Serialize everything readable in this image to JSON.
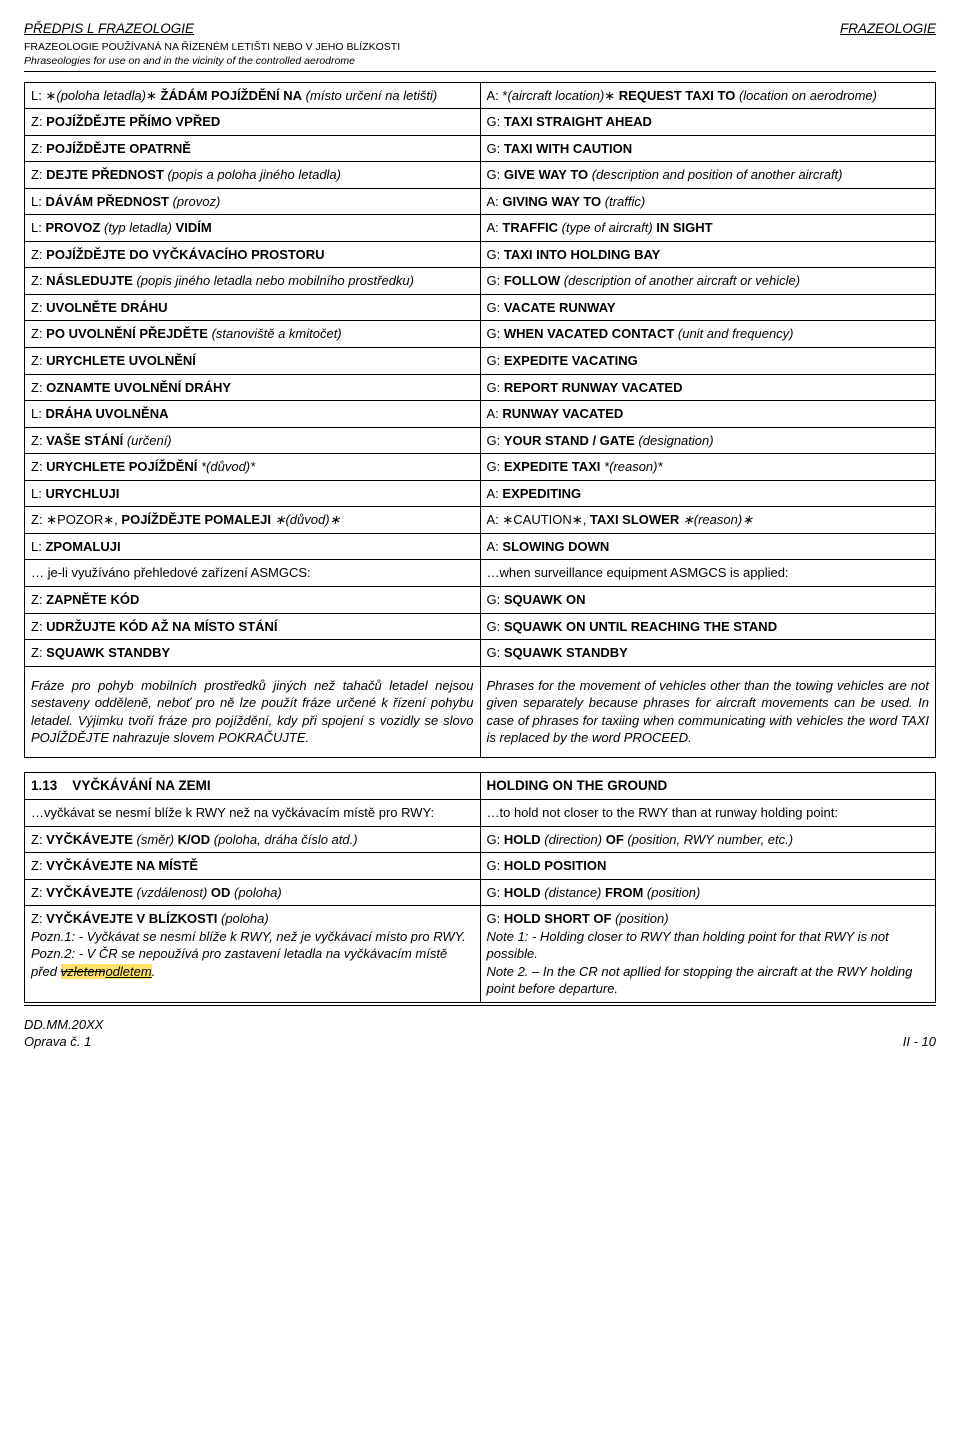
{
  "header": {
    "left_title": "PŘEDPIS L FRAZEOLOGIE",
    "right_title": "FRAZEOLOGIE",
    "sub1": "FRAZEOLOGIE POUŽÍVANÁ NA ŘÍZENÉM LETIŠTI NEBO V JEHO BLÍZKOSTI",
    "sub2": "Phraseologies for use on and in the vicinity of the controlled aerodrome"
  },
  "tableA": {
    "rows": [
      {
        "l_pre": "L: ∗",
        "l_i": "(poloha letadla)",
        "l_rest": "∗ ",
        "l_b": "ŽÁDÁM POJÍŽDĚNÍ NA",
        "l_tail_i": " (místo určení na letišti)",
        "r_pre": "A: *",
        "r_i": "(aircraft location)",
        "r_rest": "∗ ",
        "r_b": "REQUEST TAXI TO",
        "r_tail_i": " (location on aerodrome)"
      },
      {
        "l_pre": "Z: ",
        "l_b": "POJÍŽDĚJTE PŘÍMO VPŘED",
        "r_pre": "G: ",
        "r_b": "TAXI STRAIGHT AHEAD"
      },
      {
        "l_pre": "Z: ",
        "l_b": "POJÍŽDĚJTE OPATRNĚ",
        "r_pre": "G: ",
        "r_b": "TAXI WITH CAUTION"
      },
      {
        "l_pre": "Z: ",
        "l_b": "DEJTE PŘEDNOST",
        "l_tail_i": " (popis a poloha jiného letadla)",
        "r_pre": "G: ",
        "r_b": "GIVE WAY TO",
        "r_tail_i": " (description and position of another aircraft)"
      },
      {
        "l_pre": "L: ",
        "l_b": "DÁVÁM PŘEDNOST",
        "l_tail_i": " (provoz)",
        "r_pre": "A: ",
        "r_b": "GIVING WAY TO",
        "r_tail_i": " (traffic)"
      },
      {
        "l_pre": "L: ",
        "l_b": "PROVOZ",
        "l_mid_i": " (typ letadla) ",
        "l_b2": "VIDÍM",
        "r_pre": "A: ",
        "r_b": "TRAFFIC",
        "r_mid_i": " (type of aircraft) ",
        "r_b2": "IN SIGHT"
      },
      {
        "l_pre": "Z: ",
        "l_b": "POJÍŽDĚJTE DO VYČKÁVACÍHO PROSTORU",
        "r_pre": "G: ",
        "r_b": "TAXI INTO HOLDING BAY"
      },
      {
        "l_pre": "Z: ",
        "l_b": "NÁSLEDUJTE",
        "l_tail_i": " (popis jiného letadla nebo mobilního prostředku)",
        "r_pre": "G: ",
        "r_b": "FOLLOW",
        "r_tail_i": " (description of another aircraft or vehicle)"
      },
      {
        "l_pre": "Z: ",
        "l_b": "UVOLNĚTE DRÁHU",
        "r_pre": "G: ",
        "r_b": "VACATE RUNWAY"
      },
      {
        "l_pre": "Z: ",
        "l_b": "PO UVOLNĚNÍ PŘEJDĚTE",
        "l_tail_i": " (stanoviště a kmitočet)",
        "r_pre": "G: ",
        "r_b": "WHEN VACATED CONTACT",
        "r_tail_i": " (unit and frequency)"
      },
      {
        "l_pre": "Z: ",
        "l_b": "URYCHLETE UVOLNĚNÍ",
        "r_pre": "G: ",
        "r_b": "EXPEDITE VACATING"
      },
      {
        "l_pre": "Z: ",
        "l_b": "OZNAMTE UVOLNĚNÍ DRÁHY",
        "r_pre": "G: ",
        "r_b": "REPORT RUNWAY VACATED"
      },
      {
        "l_pre": "L: ",
        "l_b": "DRÁHA UVOLNĚNA",
        "r_pre": "A: ",
        "r_b": "RUNWAY VACATED"
      },
      {
        "l_pre": "Z: ",
        "l_b": "VAŠE STÁNÍ",
        "l_tail_i": " (určení)",
        "r_pre": "G: ",
        "r_b": "YOUR STAND / GATE",
        "r_tail_i": " (designation)"
      },
      {
        "l_pre": "Z: ",
        "l_b": "URYCHLETE POJÍŽDĚNÍ",
        "l_tail_i": " *(důvod)*",
        "r_pre": "G: ",
        "r_b": "EXPEDITE TAXI",
        "r_tail_i": " *(reason)*"
      },
      {
        "l_pre": "L: ",
        "l_b": "URYCHLUJI",
        "r_pre": "A: ",
        "r_b": "EXPEDITING"
      },
      {
        "l_pre": "Z: ∗",
        "l_plain": "POZOR∗, ",
        "l_b": "POJÍŽDĚJTE POMALEJI",
        "l_tail_i": " ∗(důvod)∗",
        "r_pre": "A: ∗",
        "r_plain": "CAUTION∗, ",
        "r_b": "TAXI SLOWER",
        "r_tail_i": " ∗(reason)∗"
      },
      {
        "l_pre": "L: ",
        "l_b": "ZPOMALUJI",
        "r_pre": "A: ",
        "r_b": "SLOWING DOWN"
      },
      {
        "l_plain": "… je-li využíváno přehledové zařízení ASMGCS:",
        "r_plain": "…when surveillance equipment ASMGCS is applied:"
      },
      {
        "l_pre": "Z: ",
        "l_b": "ZAPNĚTE KÓD",
        "r_pre": "G: ",
        "r_b": "SQUAWK ON"
      },
      {
        "l_pre": "Z: ",
        "l_b": "UDRŽUJTE KÓD AŽ NA MÍSTO STÁNÍ",
        "r_pre": "G: ",
        "r_b": "SQUAWK ON UNTIL REACHING THE STAND"
      },
      {
        "l_pre": "Z: ",
        "l_b": "SQUAWK STANDBY",
        "r_pre": "G: ",
        "r_b": "SQUAWK STANDBY"
      }
    ],
    "para_l": "Fráze pro pohyb mobilních prostředků jiných než tahačů letadel nejsou sestaveny odděleně, neboť pro ně lze použít fráze určené k řízení pohybu letadel. Výjimku tvoří fráze pro pojíždění, kdy při spojení s vozidly se slovo POJÍŽDĚJTE nahrazuje slovem POKRAČUJTE.",
    "para_r": "Phrases for the movement of vehicles other than the towing vehicles are not given separately because phrases for aircraft movements can be used. In case of phrases for taxiing when communicating with vehicles the word TAXI is replaced by the word PROCEED."
  },
  "tableB": {
    "head_l_num": "1.13",
    "head_l_caps": "V",
    "head_l_rest": "YČKÁVÁNÍ NA ZEMI",
    "head_r_caps": "H",
    "head_r_rest": "OLDING ON THE GROUND",
    "r1_l": "…vyčkávat se nesmí blíže k RWY než na vyčkávacím místě pro RWY:",
    "r1_r": "…to hold not closer to the RWY than at runway holding point:",
    "r2_l_pre": "Z: ",
    "r2_l_b": "VYČKÁVEJTE",
    "r2_l_i1": " (směr) ",
    "r2_l_b2": "K/OD",
    "r2_l_i2": " (poloha, dráha číslo atd.)",
    "r2_r_pre": "G: ",
    "r2_r_b": "HOLD",
    "r2_r_i1": " (direction) ",
    "r2_r_b2": "OF",
    "r2_r_i2": " (position, RWY number, etc.)",
    "r3_l_pre": "Z: ",
    "r3_l_b": "VYČKÁVEJTE NA MÍSTĚ",
    "r3_r_pre": "G: ",
    "r3_r_b": "HOLD POSITION",
    "r4_l_pre": "Z: ",
    "r4_l_b": "VYČKÁVEJTE",
    "r4_l_i1": " (vzdálenost) ",
    "r4_l_b2": "OD",
    "r4_l_i2": " (poloha)",
    "r4_r_pre": "G: ",
    "r4_r_b": "HOLD",
    "r4_r_i1": " (distance) ",
    "r4_r_b2": "FROM",
    "r4_r_i2": " (position)",
    "r5_l_pre": "Z: ",
    "r5_l_b": "VYČKÁVEJTE V BLÍZKOSTI",
    "r5_l_i": " (poloha)",
    "r5_l_n1": "Pozn.1: - Vyčkávat se nesmí blíže k RWY, než je vyčkávací místo pro RWY.",
    "r5_l_n2a": "Pozn.2: - V ČR se nepoužívá pro zastavení letadla na vyčkávacím místě před ",
    "r5_l_strike": "vzletem",
    "r5_l_ins": "odletem",
    "r5_l_n2b": ".",
    "r5_r_pre": "G: ",
    "r5_r_b": "HOLD SHORT OF",
    "r5_r_i": " (position)",
    "r5_r_n1": "Note 1: - Holding closer to RWY than holding point  for that RWY is not possible.",
    "r5_r_n2": "Note 2. – In the CR not apllied for stopping the aircraft at the RWY holding point before departure."
  },
  "footer": {
    "l1": "DD.MM.20XX",
    "l2": "Oprava č. 1",
    "r": "II - 10"
  }
}
